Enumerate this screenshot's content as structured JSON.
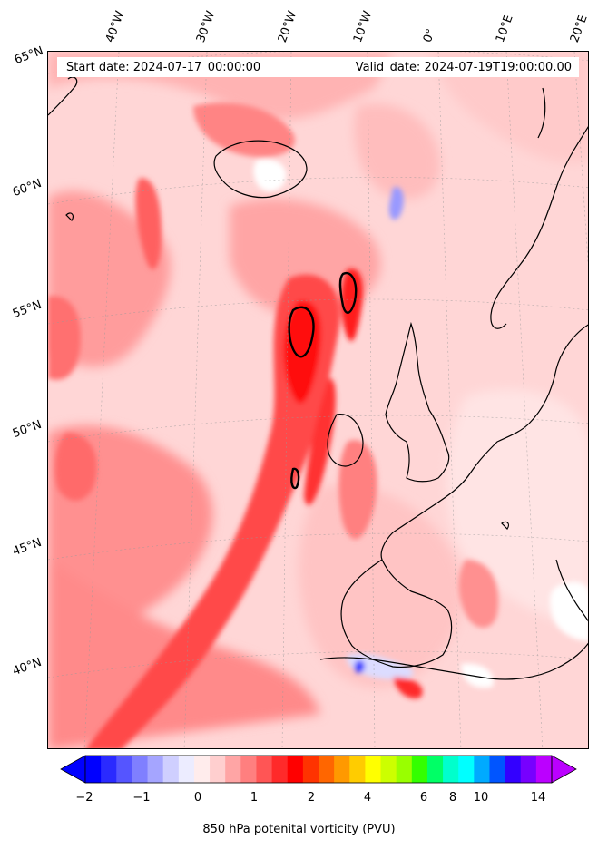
{
  "header": {
    "start_date": "Start date: 2024-07-17_00:00:00",
    "valid_date": "Valid_date: 2024-07-19T19:00:00.00"
  },
  "longitude_labels": [
    "40°W",
    "30°W",
    "20°W",
    "10°W",
    "0°",
    "10°E",
    "20°E"
  ],
  "latitude_labels": [
    "65°N",
    "60°N",
    "55°N",
    "50°N",
    "45°N",
    "40°N"
  ],
  "colorbar": {
    "label": "850 hPa potenital vorticity (PVU)",
    "ticks": [
      "−2",
      "−1",
      "0",
      "1",
      "2",
      "4",
      "6",
      "8",
      "10",
      "14"
    ],
    "colors": [
      "#0000ff",
      "#2a2aff",
      "#5555ff",
      "#7f7fff",
      "#a5a5ff",
      "#cfcfff",
      "#ececff",
      "#ffecec",
      "#ffcfcf",
      "#ffa5a5",
      "#ff7f7f",
      "#ff5555",
      "#ff2a2a",
      "#ff0000",
      "#ff3300",
      "#ff6600",
      "#ff9900",
      "#ffcc00",
      "#ffff00",
      "#ccff00",
      "#99ff00",
      "#33ff00",
      "#00ff66",
      "#00ffcc",
      "#00ffff",
      "#00aaff",
      "#0055ff",
      "#3300ff",
      "#7700ff",
      "#bb00ff"
    ],
    "under_color": "#0000ff",
    "over_color": "#bb00ff"
  },
  "map": {
    "variable": "850 hPa potential vorticity",
    "coastline_color": "#000000",
    "background_color": "#ffd9d9"
  }
}
